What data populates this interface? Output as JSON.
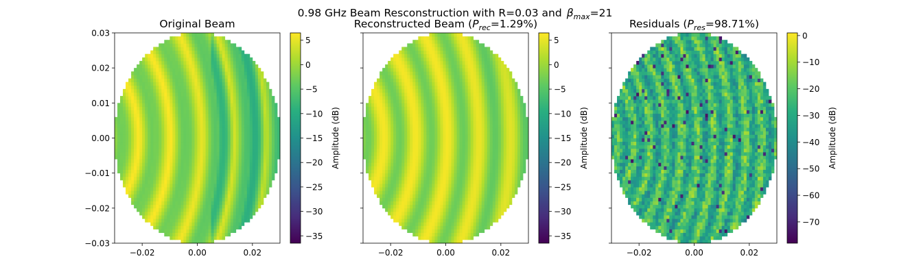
{
  "figure": {
    "suptitle_main": "0.98 GHz Beam Resconstruction with R=0.03 and",
    "suptitle_beta": "β",
    "suptitle_beta_sub": "max",
    "suptitle_beta_val": "=21"
  },
  "chart_data": [
    {
      "type": "heatmap",
      "title": "Original Beam",
      "title_parts": {
        "pre": "Original Beam",
        "sym": "",
        "sub": "",
        "post": ""
      },
      "xlim": [
        -0.03,
        0.03
      ],
      "ylim": [
        -0.03,
        0.03
      ],
      "xticks": [
        -0.02,
        0.0,
        0.02
      ],
      "xtick_labels": [
        "−0.02",
        "0.00",
        "0.02"
      ],
      "yticks": [
        -0.03,
        -0.02,
        -0.01,
        0.0,
        0.01,
        0.02,
        0.03
      ],
      "ytick_labels": [
        "−0.03",
        "−0.02",
        "−0.01",
        "0.00",
        "0.01",
        "0.02",
        "0.03"
      ],
      "show_ytick_labels": true,
      "colormap": "viridis",
      "colorbar": {
        "label": "Amplitude (dB)",
        "range": [
          -36.5,
          6.5
        ],
        "ticks": [
          5,
          0,
          -5,
          -10,
          -15,
          -20,
          -25,
          -30,
          -35
        ],
        "tick_labels": [
          "5",
          "0",
          "−5",
          "−10",
          "−15",
          "−20",
          "−25",
          "−30",
          "−35"
        ]
      }
    },
    {
      "type": "heatmap",
      "title": "Reconstructed Beam (P_rec=1.29%)",
      "title_parts": {
        "pre": "Reconstructed Beam (",
        "sym": "P",
        "sub": "rec",
        "post": "=1.29%)"
      },
      "xlim": [
        -0.03,
        0.03
      ],
      "ylim": [
        -0.03,
        0.03
      ],
      "xticks": [
        -0.02,
        0.0,
        0.02
      ],
      "xtick_labels": [
        "−0.02",
        "0.00",
        "0.02"
      ],
      "yticks": [
        -0.03,
        -0.02,
        -0.01,
        0.0,
        0.01,
        0.02,
        0.03
      ],
      "ytick_labels": [],
      "show_ytick_labels": false,
      "colormap": "viridis",
      "colorbar": {
        "label": "Amplitude (dB)",
        "range": [
          -36.5,
          6.5
        ],
        "ticks": [
          5,
          0,
          -5,
          -10,
          -15,
          -20,
          -25,
          -30,
          -35
        ],
        "tick_labels": [
          "5",
          "0",
          "−5",
          "−10",
          "−15",
          "−20",
          "−25",
          "−30",
          "−35"
        ]
      }
    },
    {
      "type": "heatmap",
      "title": "Residuals (P_res=98.71%)",
      "title_parts": {
        "pre": "Residuals (",
        "sym": "P",
        "sub": "res",
        "post": "=98.71%)"
      },
      "xlim": [
        -0.03,
        0.03
      ],
      "ylim": [
        -0.03,
        0.03
      ],
      "xticks": [
        -0.02,
        0.0,
        0.02
      ],
      "xtick_labels": [
        "−0.02",
        "0.00",
        "0.02"
      ],
      "yticks": [
        -0.03,
        -0.02,
        -0.01,
        0.0,
        0.01,
        0.02,
        0.03
      ],
      "ytick_labels": [],
      "show_ytick_labels": false,
      "colormap": "viridis",
      "colorbar": {
        "label": "Amplitude (dB)",
        "range": [
          -78,
          1
        ],
        "ticks": [
          0,
          -10,
          -20,
          -30,
          -40,
          -50,
          -60,
          -70
        ],
        "tick_labels": [
          "0",
          "−10",
          "−20",
          "−30",
          "−40",
          "−50",
          "−60",
          "−70"
        ]
      }
    }
  ]
}
